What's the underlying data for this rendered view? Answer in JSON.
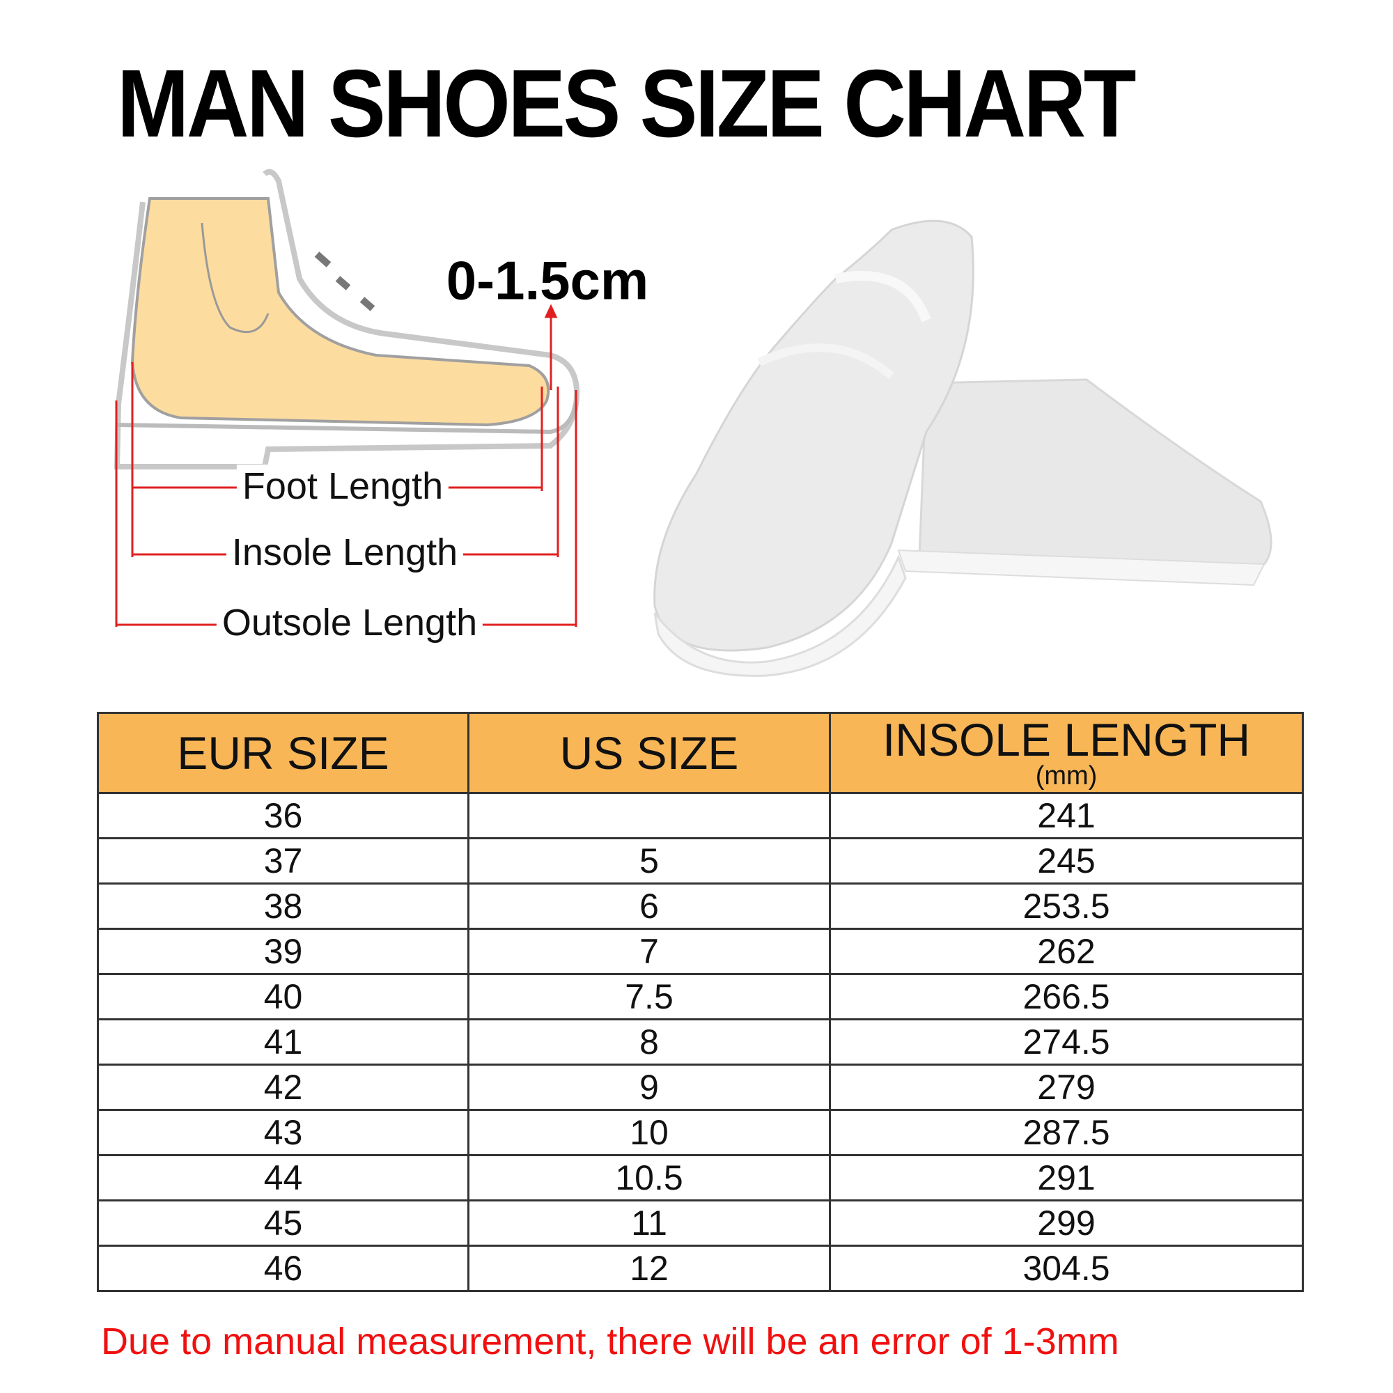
{
  "title": "MAN SHOES SIZE CHART",
  "diagram": {
    "gap_label": "0-1.5cm",
    "foot_length": "Foot Length",
    "insole_length": "Insole Length",
    "outsole_length": "Outsole Length"
  },
  "table": {
    "headers": [
      "EUR SIZE",
      "US SIZE",
      "INSOLE LENGTH"
    ],
    "header_unit": "(mm)",
    "rows": [
      [
        "36",
        "",
        "241"
      ],
      [
        "37",
        "5",
        "245"
      ],
      [
        "38",
        "6",
        "253.5"
      ],
      [
        "39",
        "7",
        "262"
      ],
      [
        "40",
        "7.5",
        "266.5"
      ],
      [
        "41",
        "8",
        "274.5"
      ],
      [
        "42",
        "9",
        "279"
      ],
      [
        "43",
        "10",
        "287.5"
      ],
      [
        "44",
        "10.5",
        "291"
      ],
      [
        "45",
        "11",
        "299"
      ],
      [
        "46",
        "12",
        "304.5"
      ]
    ]
  },
  "note": "Due to manual measurement, there will be an error of 1-3mm",
  "colors": {
    "header_bg": "#f8b656",
    "note": "#f01010",
    "arrow": "#e02020"
  }
}
